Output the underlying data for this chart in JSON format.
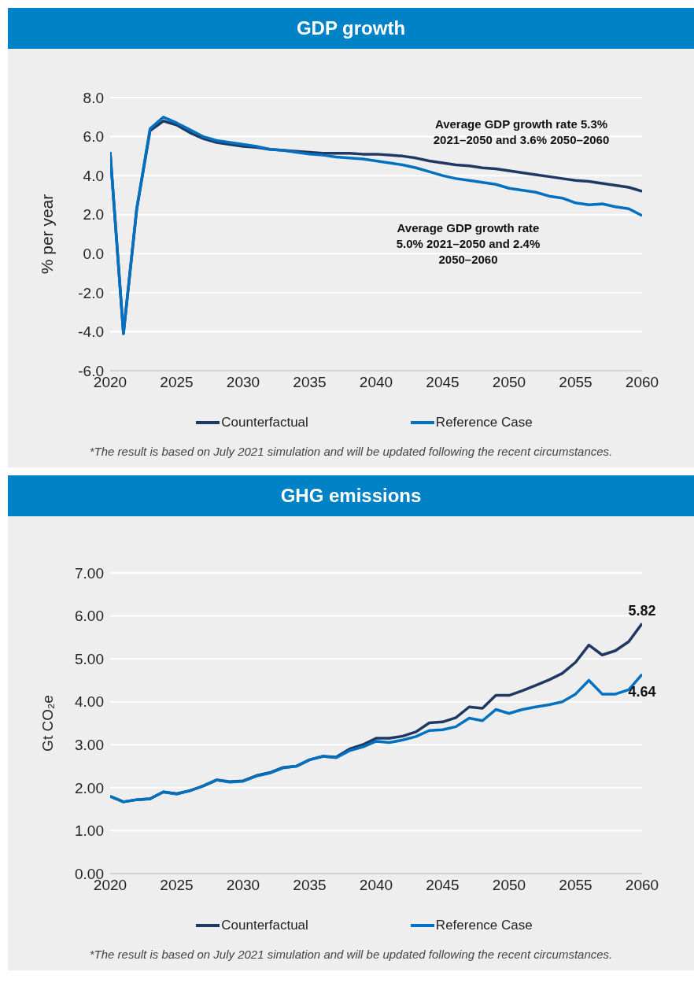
{
  "chart_data": [
    {
      "type": "line",
      "title": "GDP growth",
      "ylabel": "% per year",
      "x": [
        2020,
        2021,
        2022,
        2023,
        2024,
        2025,
        2026,
        2027,
        2028,
        2029,
        2030,
        2031,
        2032,
        2033,
        2034,
        2035,
        2036,
        2037,
        2038,
        2039,
        2040,
        2041,
        2042,
        2043,
        2044,
        2045,
        2046,
        2047,
        2048,
        2049,
        2050,
        2051,
        2052,
        2053,
        2054,
        2055,
        2056,
        2057,
        2058,
        2059,
        2060
      ],
      "series": [
        {
          "name": "Counterfactual",
          "color": "#203864",
          "values": [
            5.2,
            -4.1,
            2.3,
            6.3,
            6.8,
            6.6,
            6.2,
            5.9,
            5.7,
            5.6,
            5.5,
            5.45,
            5.35,
            5.3,
            5.25,
            5.2,
            5.15,
            5.15,
            5.15,
            5.1,
            5.1,
            5.05,
            5.0,
            4.9,
            4.75,
            4.65,
            4.55,
            4.5,
            4.4,
            4.35,
            4.25,
            4.15,
            4.05,
            3.95,
            3.85,
            3.75,
            3.7,
            3.6,
            3.5,
            3.4,
            3.2
          ]
        },
        {
          "name": "Reference Case",
          "color": "#0070c0",
          "values": [
            5.2,
            -4.1,
            2.3,
            6.4,
            7.0,
            6.7,
            6.35,
            6.0,
            5.8,
            5.7,
            5.6,
            5.5,
            5.35,
            5.3,
            5.2,
            5.1,
            5.05,
            4.95,
            4.9,
            4.85,
            4.75,
            4.65,
            4.55,
            4.4,
            4.2,
            4.0,
            3.85,
            3.75,
            3.65,
            3.55,
            3.35,
            3.25,
            3.15,
            2.95,
            2.85,
            2.6,
            2.5,
            2.55,
            2.4,
            2.3,
            1.95
          ]
        }
      ],
      "xlim": [
        2020,
        2060
      ],
      "xticks": [
        2020,
        2025,
        2030,
        2035,
        2040,
        2045,
        2050,
        2055,
        2060
      ],
      "ylim": [
        -6,
        8
      ],
      "yticks": [
        {
          "value": -6,
          "label": "-6.0"
        },
        {
          "value": -4,
          "label": "-4.0"
        },
        {
          "value": -2,
          "label": "-2.0"
        },
        {
          "value": 0,
          "label": "0.0"
        },
        {
          "value": 2,
          "label": "2.0"
        },
        {
          "value": 4,
          "label": "4.0"
        },
        {
          "value": 6,
          "label": "6.0"
        },
        {
          "value": 8,
          "label": "8.0"
        }
      ],
      "grid": "y",
      "legend": "bottom",
      "annotations": [
        "Average GDP growth rate 5.3% 2021–2050 and 3.6% 2050–2060",
        "Average GDP growth rate 5.0% 2021–2050 and 2.4% 2050–2060",
        "*The result is based on July 2021 simulation and will be updated following the recent circumstances."
      ]
    },
    {
      "type": "line",
      "title": "GHG emissions",
      "ylabel": "Gt CO₂e",
      "x": [
        2020,
        2021,
        2022,
        2023,
        2024,
        2025,
        2026,
        2027,
        2028,
        2029,
        2030,
        2031,
        2032,
        2033,
        2034,
        2035,
        2036,
        2037,
        2038,
        2039,
        2040,
        2041,
        2042,
        2043,
        2044,
        2045,
        2046,
        2047,
        2048,
        2049,
        2050,
        2051,
        2052,
        2053,
        2054,
        2055,
        2056,
        2057,
        2058,
        2059,
        2060
      ],
      "series": [
        {
          "name": "Counterfactual",
          "color": "#203864",
          "values": [
            1.8,
            1.67,
            1.72,
            1.74,
            1.9,
            1.86,
            1.93,
            2.04,
            2.18,
            2.14,
            2.16,
            2.28,
            2.35,
            2.47,
            2.5,
            2.65,
            2.73,
            2.71,
            2.9,
            3.0,
            3.15,
            3.15,
            3.2,
            3.3,
            3.51,
            3.53,
            3.63,
            3.88,
            3.85,
            4.15,
            4.15,
            4.26,
            4.38,
            4.51,
            4.66,
            4.92,
            5.32,
            5.09,
            5.19,
            5.4,
            5.82
          ]
        },
        {
          "name": "Reference Case",
          "color": "#0070c0",
          "values": [
            1.8,
            1.67,
            1.72,
            1.74,
            1.9,
            1.85,
            1.93,
            2.04,
            2.18,
            2.13,
            2.15,
            2.27,
            2.34,
            2.46,
            2.5,
            2.65,
            2.73,
            2.7,
            2.86,
            2.95,
            3.08,
            3.05,
            3.11,
            3.19,
            3.33,
            3.35,
            3.42,
            3.62,
            3.56,
            3.82,
            3.73,
            3.82,
            3.88,
            3.93,
            4.0,
            4.18,
            4.5,
            4.18,
            4.18,
            4.28,
            4.64
          ]
        }
      ],
      "xlim": [
        2020,
        2060
      ],
      "xticks": [
        2020,
        2025,
        2030,
        2035,
        2040,
        2045,
        2050,
        2055,
        2060
      ],
      "ylim": [
        0,
        7
      ],
      "yticks": [
        {
          "value": 0,
          "label": "0.00"
        },
        {
          "value": 1,
          "label": "1.00"
        },
        {
          "value": 2,
          "label": "2.00"
        },
        {
          "value": 3,
          "label": "3.00"
        },
        {
          "value": 4,
          "label": "4.00"
        },
        {
          "value": 5,
          "label": "5.00"
        },
        {
          "value": 6,
          "label": "6.00"
        },
        {
          "value": 7,
          "label": "7.00"
        }
      ],
      "grid": "y",
      "legend": "bottom",
      "annotations": [
        {
          "text": "5.82",
          "x": 2060,
          "y": 5.82
        },
        {
          "text": "4.64",
          "x": 2060,
          "y": 4.64
        },
        "*The result is based on July 2021 simulation and will be updated following the recent circumstances."
      ]
    }
  ]
}
